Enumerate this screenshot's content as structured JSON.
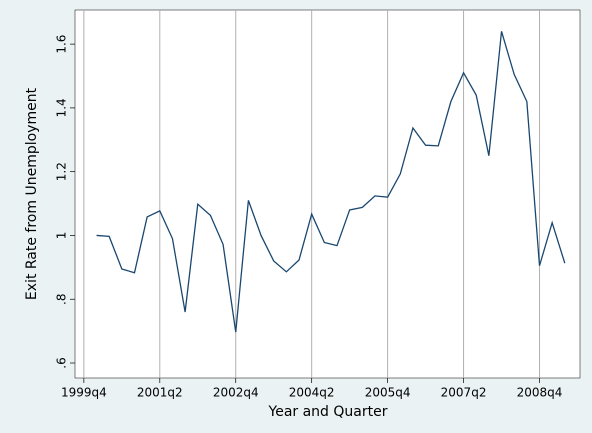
{
  "chart_data": {
    "type": "line",
    "x_label": "Year and Quarter",
    "y_label": "Exit Rate from Unemployment",
    "x": [
      160,
      161,
      162,
      163,
      164,
      165,
      166,
      167,
      168,
      169,
      170,
      171,
      172,
      173,
      174,
      175,
      176,
      177,
      178,
      179,
      180,
      181,
      182,
      183,
      184,
      185,
      186,
      187,
      188,
      189,
      190,
      191,
      192,
      193,
      194,
      195,
      196,
      197
    ],
    "series": [
      {
        "color": "#1a476f",
        "values": [
          1.0,
          0.997,
          0.895,
          0.883,
          1.058,
          1.077,
          0.99,
          0.76,
          1.098,
          1.063,
          0.972,
          0.697,
          1.11,
          1.0,
          0.92,
          0.886,
          0.923,
          1.067,
          0.978,
          0.968,
          1.08,
          1.088,
          1.124,
          1.12,
          1.193,
          1.337,
          1.283,
          1.281,
          1.42,
          1.51,
          1.44,
          1.25,
          1.64,
          1.505,
          1.42,
          0.905,
          1.04,
          0.913
        ]
      }
    ],
    "xlim": [
      158.3,
      198.2
    ],
    "ylim": [
      0.553,
      1.707
    ],
    "xticks": [
      {
        "value": 159,
        "label": "1999q4"
      },
      {
        "value": 165,
        "label": "2001q2"
      },
      {
        "value": 171,
        "label": "2002q4"
      },
      {
        "value": 177,
        "label": "2004q2"
      },
      {
        "value": 183,
        "label": "2005q4"
      },
      {
        "value": 189,
        "label": "2007q2"
      },
      {
        "value": 195,
        "label": "2008q4"
      }
    ],
    "yticks": [
      {
        "value": 0.6,
        "label": ".6"
      },
      {
        "value": 0.8,
        "label": ".8"
      },
      1,
      1.2,
      1.4,
      1.6
    ],
    "grid": "x"
  }
}
